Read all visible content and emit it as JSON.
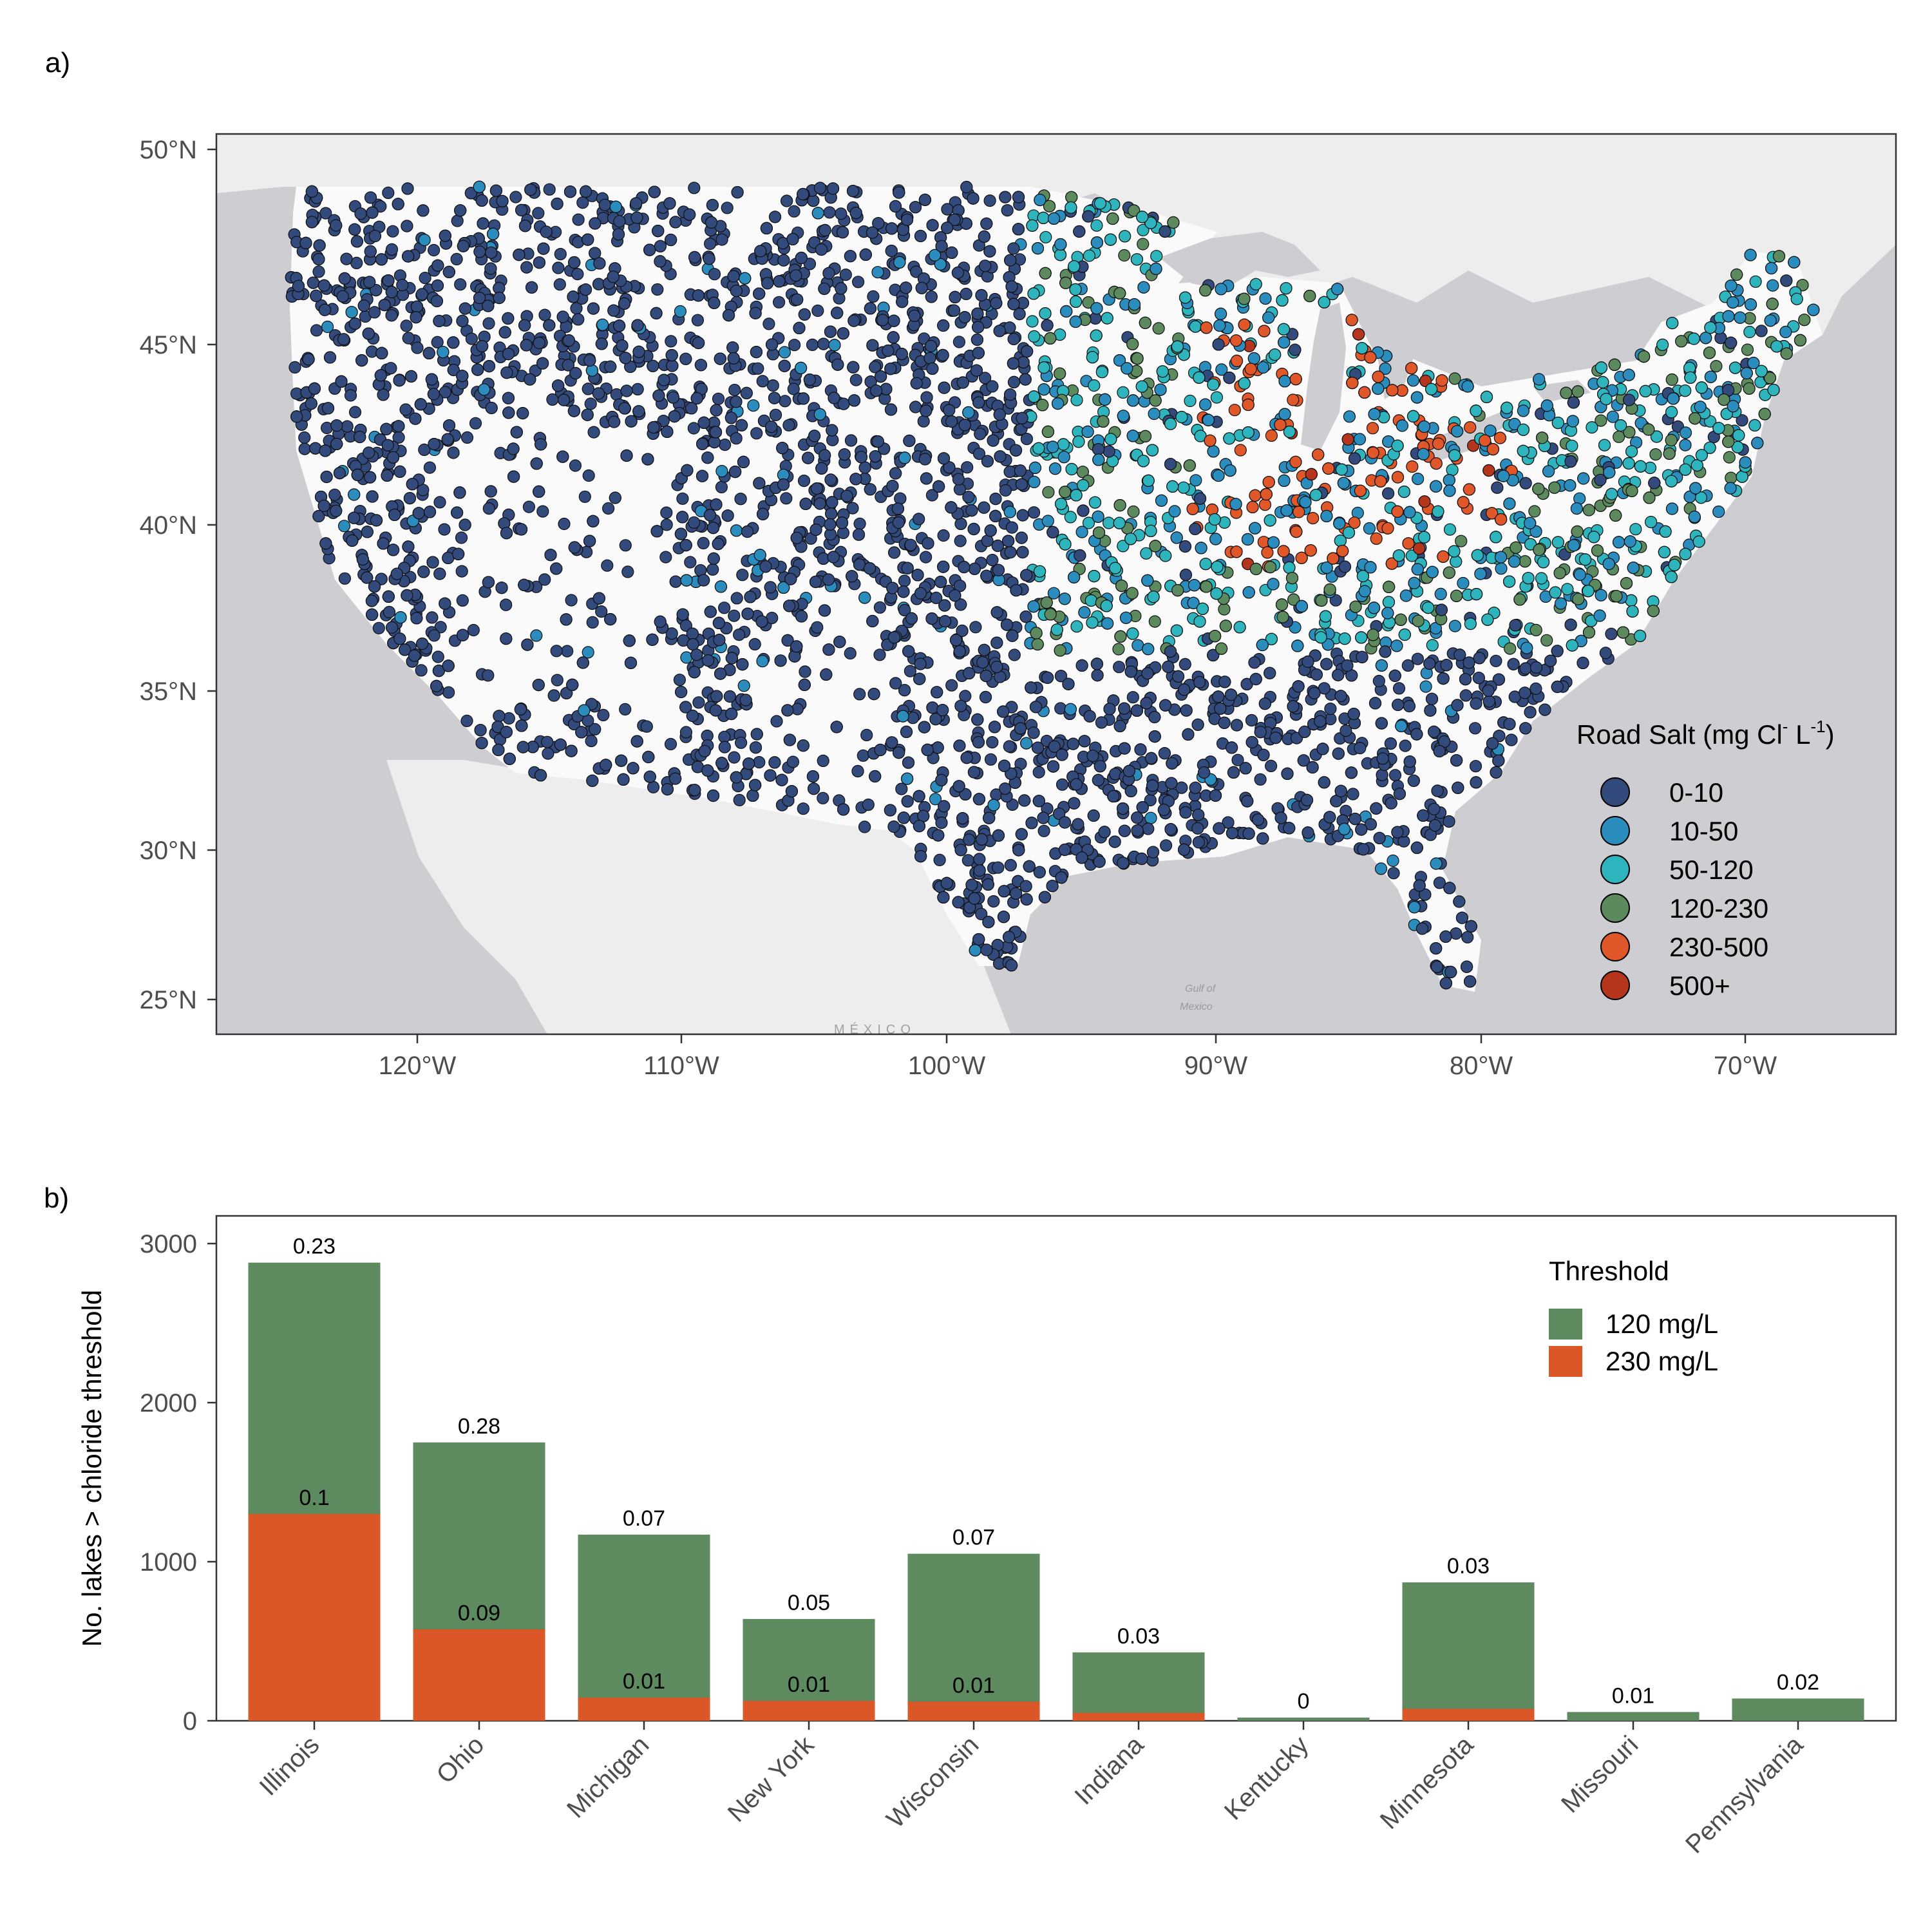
{
  "panel_a": {
    "label": "a)",
    "map_labels": {
      "gulf": "Gulf of\nMexico",
      "country": "MÉXICO"
    },
    "legend": {
      "title": "Road Salt (mg Cl",
      "title_sup1": "-",
      "title_mid": " L",
      "title_sup2": "-1",
      "title_end": ")",
      "items": [
        {
          "label": "0-10",
          "color": "#334A7D"
        },
        {
          "label": "10-50",
          "color": "#2B8CBE"
        },
        {
          "label": "50-120",
          "color": "#2EB4BC"
        },
        {
          "label": "120-230",
          "color": "#5C8A5E"
        },
        {
          "label": "230-500",
          "color": "#E0572A"
        },
        {
          "label": "500+",
          "color": "#B5351D"
        }
      ]
    },
    "y_ticks": [
      "25°N",
      "30°N",
      "35°N",
      "40°N",
      "45°N",
      "50°N"
    ],
    "x_ticks": [
      "120°W",
      "110°W",
      "100°W",
      "90°W",
      "80°W",
      "70°W"
    ]
  },
  "chart_data": {
    "type": "bar",
    "title": "",
    "xlabel": "",
    "ylabel": "No. lakes > chloride threshold",
    "ylim": [
      0,
      3000
    ],
    "y_ticks": [
      0,
      1000,
      2000,
      3000
    ],
    "categories": [
      "Illinois",
      "Ohio",
      "Michigan",
      "New York",
      "Wisconsin",
      "Indiana",
      "Kentucky",
      "Minnesota",
      "Missouri",
      "Pennsylvania"
    ],
    "series": [
      {
        "name": "120 mg/L",
        "color": "#5D8A5E",
        "values": [
          2880,
          1750,
          1170,
          640,
          1050,
          430,
          20,
          870,
          55,
          140
        ],
        "labels": [
          "0.23",
          "0.28",
          "0.07",
          "0.05",
          "0.07",
          "0.03",
          "0",
          "0.03",
          "0.01",
          "0.02"
        ]
      },
      {
        "name": "230 mg/L",
        "color": "#DC5727",
        "values": [
          1300,
          575,
          145,
          125,
          120,
          50,
          0,
          75,
          0,
          0
        ],
        "labels": [
          "0.1",
          "0.09",
          "0.01",
          "0.01",
          "0.01",
          "",
          "",
          "",
          "",
          ""
        ]
      }
    ],
    "legend": {
      "title": "Threshold",
      "position": "top-right"
    },
    "panel_label": "b)"
  }
}
